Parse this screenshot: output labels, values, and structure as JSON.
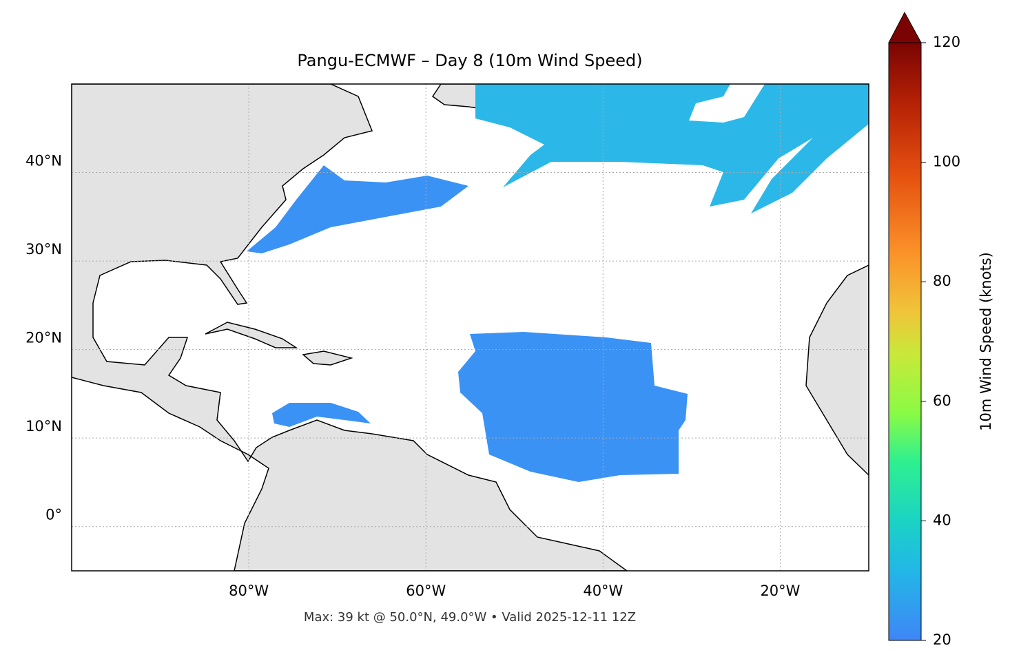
{
  "chart_data": {
    "type": "map",
    "title": "Pangu-ECMWF – Day 8 (10m Wind Speed)",
    "footnote": "Max: 39 kt @ 50.0°N, 49.0°W • Valid 2025-12-11 12Z",
    "xlim": [
      -100,
      -10
    ],
    "ylim": [
      -5,
      50
    ],
    "xticks": [
      {
        "value": -80,
        "label": "80°W"
      },
      {
        "value": -60,
        "label": "60°W"
      },
      {
        "value": -40,
        "label": "40°W"
      },
      {
        "value": -20,
        "label": "20°W"
      }
    ],
    "yticks": [
      {
        "value": 0,
        "label": "0°"
      },
      {
        "value": 10,
        "label": "10°N"
      },
      {
        "value": 20,
        "label": "20°N"
      },
      {
        "value": 30,
        "label": "30°N"
      },
      {
        "value": 40,
        "label": "40°N"
      }
    ],
    "grid": true,
    "colorbar": {
      "label": "10m Wind Speed (knots)",
      "lim": [
        20,
        120
      ],
      "ticks": [
        20,
        40,
        60,
        80,
        100,
        120
      ]
    }
  }
}
